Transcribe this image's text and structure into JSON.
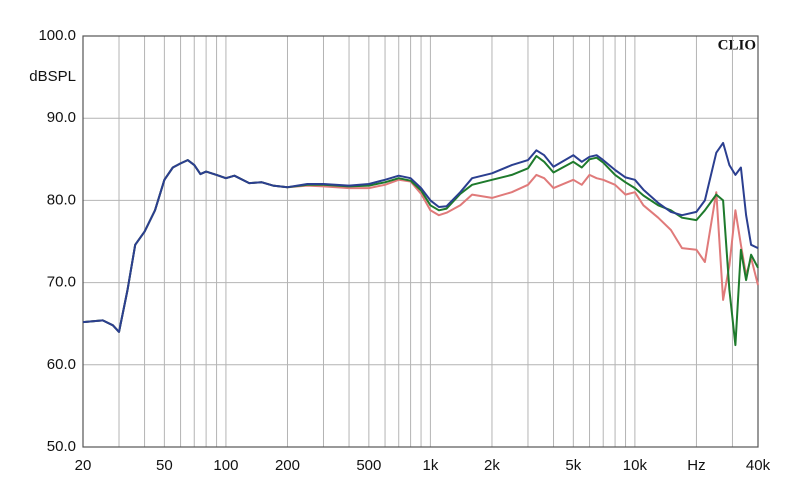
{
  "chart_data": {
    "type": "line",
    "brand": "CLIO",
    "y_label": "dBSPL",
    "xlog": true,
    "xlim": [
      20,
      40000
    ],
    "ylim": [
      50,
      100
    ],
    "xticks": [
      20,
      50,
      100,
      200,
      500,
      {
        "value": 1000,
        "label": "1k"
      },
      {
        "value": 2000,
        "label": "2k"
      },
      {
        "value": 5000,
        "label": "5k"
      },
      {
        "value": 10000,
        "label": "10k"
      },
      {
        "value": 20000,
        "label": "Hz"
      },
      {
        "value": 40000,
        "label": "40k"
      }
    ],
    "xminor": [
      30,
      40,
      60,
      70,
      80,
      90,
      300,
      400,
      600,
      700,
      800,
      900,
      3000,
      4000,
      6000,
      7000,
      8000,
      9000,
      30000
    ],
    "yticks": [
      {
        "value": 100,
        "label": "100.0"
      },
      {
        "value": 90,
        "label": "90.0"
      },
      {
        "value": 80,
        "label": "80.0"
      },
      {
        "value": 70,
        "label": "70.0"
      },
      {
        "value": 60,
        "label": "60.0"
      },
      {
        "value": 50,
        "label": "50.0"
      }
    ],
    "grid": true,
    "x": [
      20,
      25,
      28,
      30,
      33,
      36,
      40,
      45,
      50,
      55,
      60,
      65,
      70,
      75,
      80,
      90,
      100,
      110,
      130,
      150,
      170,
      200,
      250,
      300,
      400,
      500,
      600,
      700,
      800,
      900,
      1000,
      1100,
      1200,
      1400,
      1600,
      2000,
      2500,
      3000,
      3300,
      3600,
      4000,
      5000,
      5500,
      6000,
      6500,
      7000,
      8000,
      9000,
      10000,
      11000,
      13000,
      15000,
      17000,
      20000,
      22000,
      25000,
      27000,
      29000,
      31000,
      33000,
      35000,
      37000,
      40000
    ],
    "series": [
      {
        "color": "#e07a7a",
        "values": [
          65.2,
          65.4,
          64.8,
          64.0,
          69.1,
          74.6,
          76.2,
          78.8,
          82.5,
          84.0,
          84.5,
          84.9,
          84.3,
          83.2,
          83.5,
          83.1,
          82.7,
          83.0,
          82.1,
          82.2,
          81.8,
          81.6,
          81.8,
          81.7,
          81.5,
          81.5,
          81.9,
          82.5,
          82.3,
          80.8,
          78.8,
          78.2,
          78.5,
          79.4,
          80.7,
          80.3,
          81.0,
          81.9,
          83.1,
          82.7,
          81.5,
          82.5,
          81.9,
          83.1,
          82.7,
          82.5,
          81.9,
          80.7,
          81.0,
          79.4,
          77.9,
          76.4,
          74.2,
          74.0,
          72.5,
          81.0,
          67.9,
          72.1,
          78.8,
          74.6,
          70.9,
          73.0,
          69.7
        ]
      },
      {
        "color": "#1e7a2c",
        "values": [
          65.2,
          65.4,
          64.8,
          64.0,
          69.1,
          74.6,
          76.2,
          78.8,
          82.5,
          84.0,
          84.5,
          84.9,
          84.3,
          83.2,
          83.5,
          83.1,
          82.7,
          83.0,
          82.1,
          82.2,
          81.8,
          81.6,
          81.9,
          81.9,
          81.7,
          81.8,
          82.2,
          82.7,
          82.4,
          81.2,
          79.4,
          78.8,
          79.0,
          80.8,
          81.9,
          82.5,
          83.1,
          83.9,
          85.4,
          84.7,
          83.4,
          84.7,
          84.0,
          85.0,
          85.2,
          84.6,
          83.1,
          82.2,
          81.5,
          80.6,
          79.4,
          78.8,
          77.9,
          77.6,
          78.8,
          80.7,
          80.0,
          69.1,
          62.4,
          74.0,
          70.3,
          73.4,
          71.8
        ]
      },
      {
        "color": "#2b3f90",
        "values": [
          65.2,
          65.4,
          64.8,
          64.0,
          69.1,
          74.6,
          76.2,
          78.8,
          82.5,
          84.0,
          84.5,
          84.9,
          84.3,
          83.2,
          83.5,
          83.1,
          82.7,
          83.0,
          82.1,
          82.2,
          81.8,
          81.6,
          82.0,
          82.0,
          81.8,
          82.0,
          82.5,
          83.0,
          82.7,
          81.5,
          80.0,
          79.2,
          79.3,
          81.0,
          82.7,
          83.3,
          84.3,
          84.9,
          86.1,
          85.5,
          84.1,
          85.5,
          84.7,
          85.3,
          85.5,
          84.9,
          83.7,
          82.8,
          82.5,
          81.3,
          79.7,
          78.6,
          78.2,
          78.6,
          80.0,
          85.8,
          87.0,
          84.3,
          83.1,
          84.0,
          78.2,
          74.6,
          74.2
        ]
      }
    ]
  }
}
